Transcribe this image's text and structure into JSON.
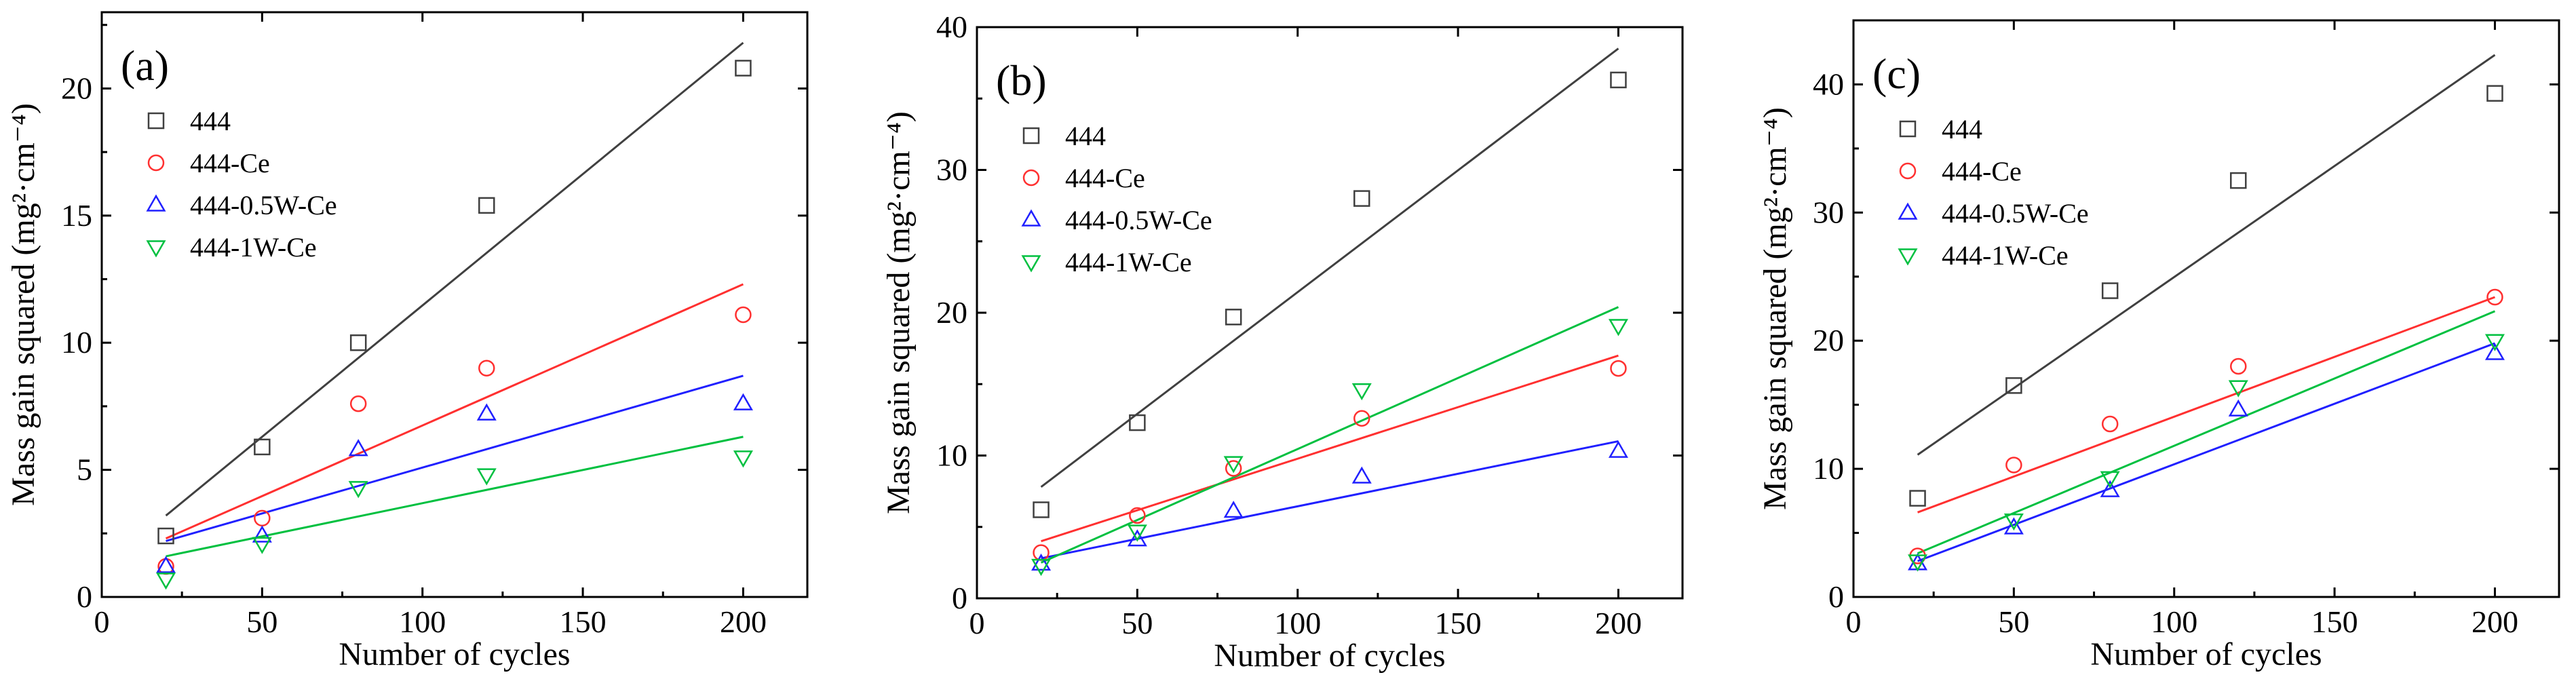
{
  "chart_data": [
    {
      "type": "scatter",
      "panel_label": "(a)",
      "title": "",
      "xlabel": "Number of cycles",
      "ylabel": "Mass gain squared (mg²·cm⁻⁴)",
      "xlim": [
        0,
        220
      ],
      "ylim": [
        0,
        23
      ],
      "xticks": [
        "0",
        "50",
        "100",
        "150",
        "200"
      ],
      "yticks": [
        "0",
        "5",
        "10",
        "15",
        "20"
      ],
      "xtick_values": [
        0,
        50,
        100,
        150,
        200
      ],
      "ytick_values": [
        0,
        5,
        10,
        15,
        20
      ],
      "legend_position": "top-left",
      "x": [
        20,
        50,
        80,
        120,
        200
      ],
      "series": [
        {
          "name": "444",
          "marker": "square",
          "color": "#404040",
          "values": [
            2.4,
            5.9,
            10.0,
            15.4,
            20.8
          ],
          "fit": [
            [
              20,
              3.2
            ],
            [
              200,
              21.8
            ]
          ]
        },
        {
          "name": "444-Ce",
          "marker": "circle",
          "color": "#ff3030",
          "values": [
            1.2,
            3.1,
            7.6,
            9.0,
            11.1
          ],
          "fit": [
            [
              20,
              2.3
            ],
            [
              200,
              12.3
            ]
          ]
        },
        {
          "name": "444-0.5W-Ce",
          "marker": "triangle-up",
          "color": "#2020ff",
          "values": [
            1.2,
            2.4,
            5.8,
            7.2,
            7.6
          ],
          "fit": [
            [
              20,
              2.2
            ],
            [
              200,
              8.7
            ]
          ]
        },
        {
          "name": "444-1W-Ce",
          "marker": "triangle-down",
          "color": "#00c040",
          "values": [
            0.7,
            2.1,
            4.3,
            4.8,
            5.5
          ],
          "fit": [
            [
              20,
              1.6
            ],
            [
              200,
              6.3
            ]
          ]
        }
      ]
    },
    {
      "type": "scatter",
      "panel_label": "(b)",
      "title": "",
      "xlabel": "Number of cycles",
      "ylabel": "Mass gain squared (mg²·cm⁻⁴)",
      "xlim": [
        0,
        220
      ],
      "ylim": [
        0,
        40
      ],
      "xticks": [
        "0",
        "50",
        "100",
        "150",
        "200"
      ],
      "yticks": [
        "0",
        "10",
        "20",
        "30",
        "40"
      ],
      "xtick_values": [
        0,
        50,
        100,
        150,
        200
      ],
      "ytick_values": [
        0,
        10,
        20,
        30,
        40
      ],
      "legend_position": "top-left",
      "x": [
        20,
        50,
        80,
        120,
        200
      ],
      "series": [
        {
          "name": "444",
          "marker": "square",
          "color": "#404040",
          "values": [
            6.2,
            12.3,
            19.7,
            28.0,
            36.3
          ],
          "fit": [
            [
              20,
              7.8
            ],
            [
              200,
              38.5
            ]
          ]
        },
        {
          "name": "444-Ce",
          "marker": "circle",
          "color": "#ff3030",
          "values": [
            3.2,
            5.8,
            9.1,
            12.6,
            16.1
          ],
          "fit": [
            [
              20,
              4.0
            ],
            [
              200,
              17.0
            ]
          ]
        },
        {
          "name": "444-0.5W-Ce",
          "marker": "triangle-up",
          "color": "#2020ff",
          "values": [
            2.4,
            4.1,
            6.1,
            8.5,
            10.3
          ],
          "fit": [
            [
              20,
              2.8
            ],
            [
              200,
              11.0
            ]
          ]
        },
        {
          "name": "444-1W-Ce",
          "marker": "triangle-down",
          "color": "#00c040",
          "values": [
            2.3,
            4.7,
            9.5,
            14.6,
            19.1
          ],
          "fit": [
            [
              20,
              2.5
            ],
            [
              200,
              20.4
            ]
          ]
        }
      ]
    },
    {
      "type": "scatter",
      "panel_label": "(c)",
      "title": "",
      "xlabel": "Number of cycles",
      "ylabel": "Mass gain squared (mg²·cm⁻⁴)",
      "xlim": [
        0,
        220
      ],
      "ylim": [
        0,
        45
      ],
      "xticks": [
        "0",
        "50",
        "100",
        "150",
        "200"
      ],
      "yticks": [
        "0",
        "10",
        "20",
        "30",
        "40"
      ],
      "xtick_values": [
        0,
        50,
        100,
        150,
        200
      ],
      "ytick_values": [
        0,
        10,
        20,
        30,
        40
      ],
      "legend_position": "top-left",
      "x": [
        20,
        50,
        80,
        120,
        200
      ],
      "series": [
        {
          "name": "444",
          "marker": "square",
          "color": "#404040",
          "values": [
            7.7,
            16.5,
            23.9,
            32.5,
            39.3
          ],
          "fit": [
            [
              20,
              11.1
            ],
            [
              200,
              42.3
            ]
          ]
        },
        {
          "name": "444-Ce",
          "marker": "circle",
          "color": "#ff3030",
          "values": [
            3.2,
            10.3,
            13.5,
            18.0,
            23.4
          ],
          "fit": [
            [
              20,
              6.6
            ],
            [
              200,
              23.4
            ]
          ]
        },
        {
          "name": "444-0.5W-Ce",
          "marker": "triangle-up",
          "color": "#2020ff",
          "values": [
            2.6,
            5.4,
            8.3,
            14.6,
            19.0
          ],
          "fit": [
            [
              20,
              2.8
            ],
            [
              200,
              19.8
            ]
          ]
        },
        {
          "name": "444-1W-Ce",
          "marker": "triangle-down",
          "color": "#00c040",
          "values": [
            2.8,
            6.0,
            9.3,
            16.4,
            20.0
          ],
          "fit": [
            [
              20,
              3.4
            ],
            [
              200,
              22.3
            ]
          ]
        }
      ]
    }
  ]
}
